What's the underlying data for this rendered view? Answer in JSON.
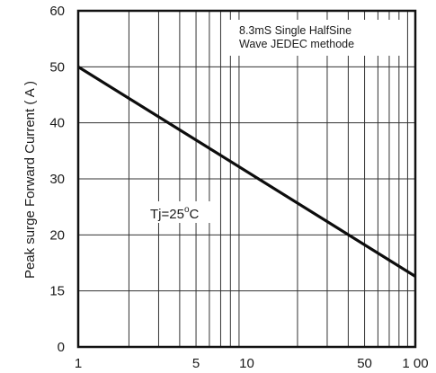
{
  "chart_data": {
    "type": "line",
    "ylabel": "Peak surge Forward Current ( A )",
    "xlabel": "",
    "x_scale": "log",
    "xlim": [
      1,
      100
    ],
    "ylim": [
      0,
      60
    ],
    "x_tick_labels": [
      {
        "value": 1,
        "label": "1"
      },
      {
        "value": 5,
        "label": "5"
      },
      {
        "value": 10,
        "label": "10"
      },
      {
        "value": 50,
        "label": "50"
      },
      {
        "value": 100,
        "label": "1 00"
      }
    ],
    "y_tick_labels": [
      {
        "value": 0,
        "label": "0"
      },
      {
        "value": 15,
        "label": "15"
      },
      {
        "value": 20,
        "label": "20"
      },
      {
        "value": 30,
        "label": "30"
      },
      {
        "value": 40,
        "label": "40"
      },
      {
        "value": 50,
        "label": "50"
      },
      {
        "value": 60,
        "label": "60"
      }
    ],
    "grid": true,
    "series": [
      {
        "x": [
          1,
          100
        ],
        "y": [
          50,
          16.3
        ]
      }
    ],
    "annotations": {
      "note_line1": "8.3mS Single HalfSine",
      "note_line2": "Wave JEDEC methode",
      "tj_main": "Tj=25",
      "tj_degree": "o",
      "tj_unit": "C"
    }
  }
}
